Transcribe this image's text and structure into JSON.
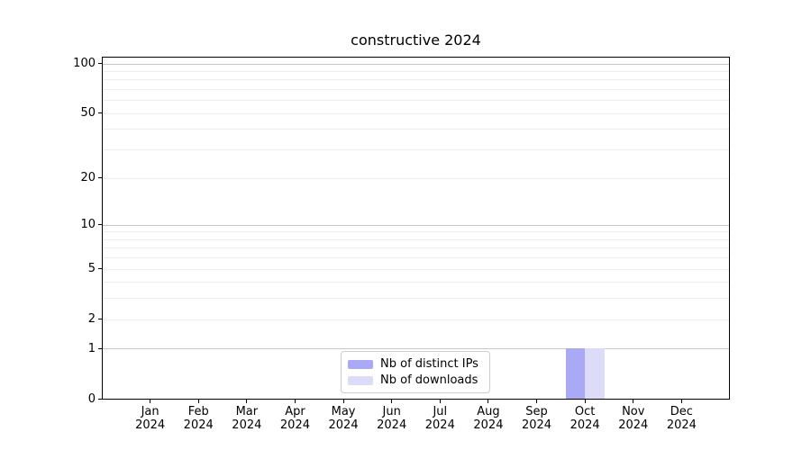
{
  "figure": {
    "background": "#ffffff"
  },
  "chart_data": {
    "type": "bar",
    "title": "constructive 2024",
    "categories": [
      "Jan",
      "Feb",
      "Mar",
      "Apr",
      "May",
      "Jun",
      "Jul",
      "Aug",
      "Sep",
      "Oct",
      "Nov",
      "Dec"
    ],
    "year": "2024",
    "series": [
      {
        "name": "Nb of distinct IPs",
        "color": "#a9a9f6",
        "values": [
          0,
          0,
          0,
          0,
          0,
          0,
          0,
          0,
          0,
          1,
          0,
          0
        ]
      },
      {
        "name": "Nb of downloads",
        "color": "#dcdcf8",
        "values": [
          0,
          0,
          0,
          0,
          0,
          0,
          0,
          0,
          0,
          1,
          0,
          0
        ]
      }
    ],
    "xlabel": "",
    "ylabel": "",
    "yscale": "log10(1+y)",
    "ylim": [
      0,
      110
    ],
    "yticks": [
      0,
      1,
      2,
      5,
      10,
      20,
      50,
      100
    ],
    "major_gridlines": [
      1,
      10,
      100
    ],
    "minor_gridlines": [
      2,
      3,
      4,
      5,
      6,
      7,
      8,
      9,
      20,
      30,
      40,
      50,
      60,
      70,
      80,
      90
    ],
    "grid_colors": {
      "major": "#c8c8c8",
      "minor": "#ededed"
    },
    "axis_color": "#000000",
    "legend_position": "lower center"
  }
}
